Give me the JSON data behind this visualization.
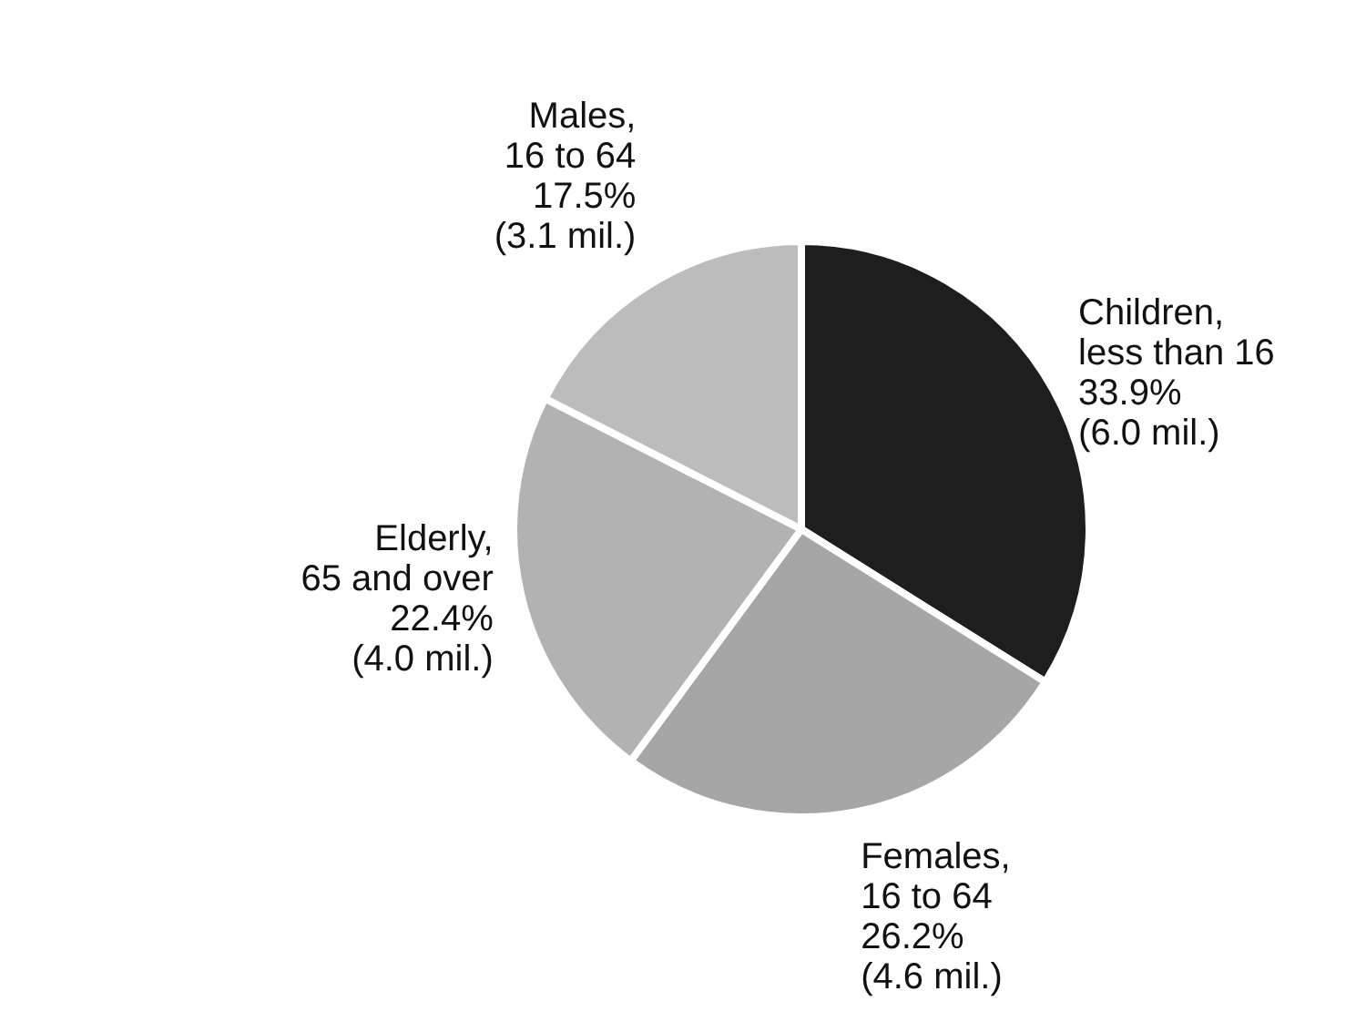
{
  "chart_data": {
    "type": "pie",
    "categories": [
      "Children,\nless than 16",
      "Females,\n16 to 64",
      "Elderly,\n65 and over",
      "Males,\n16 to 64"
    ],
    "values": [
      33.9,
      26.2,
      22.4,
      17.5
    ],
    "value_labels": [
      "33.9%\n(6.0 mil.)",
      "26.2%\n(4.6 mil.)",
      "22.4%\n(4.0 mil.)",
      "17.5%\n(3.1 mil.)"
    ],
    "colors": [
      "#1e1e1e",
      "#a6a6a6",
      "#b2b2b2",
      "#bcbcbc"
    ],
    "legend": false
  }
}
